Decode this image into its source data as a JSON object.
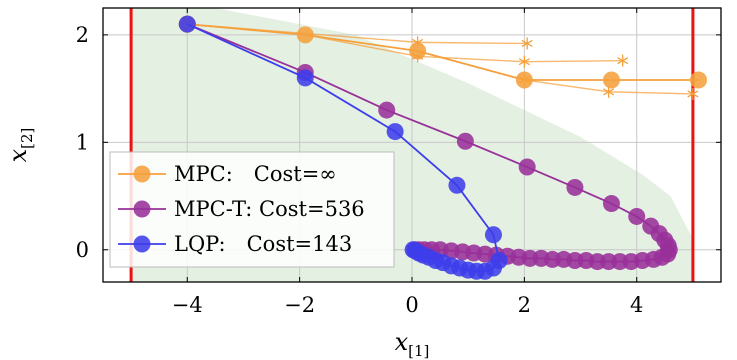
{
  "chart_data": {
    "type": "line",
    "xlabel": "x",
    "xlabel_sub": "[1]",
    "ylabel": "x",
    "ylabel_sub": "[2]",
    "xlim": [
      -5.5,
      5.5
    ],
    "ylim": [
      -0.3,
      2.25
    ],
    "xticks": [
      {
        "value": -4,
        "label": "−4"
      },
      {
        "value": -2,
        "label": "−2"
      },
      {
        "value": 0,
        "label": "0"
      },
      {
        "value": 2,
        "label": "2"
      },
      {
        "value": 4,
        "label": "4"
      }
    ],
    "yticks": [
      {
        "value": 0,
        "label": "0"
      },
      {
        "value": 1,
        "label": "1"
      },
      {
        "value": 2,
        "label": "2"
      }
    ],
    "grid": true,
    "constraint_lines_x": [
      -5,
      5
    ],
    "feasible_region_polygon": [
      [
        -5,
        2.25
      ],
      [
        -4,
        2.25
      ],
      [
        -3.5,
        2.25
      ],
      [
        -2.5,
        2.15
      ],
      [
        -1,
        2.0
      ],
      [
        1.0,
        1.55
      ],
      [
        3.0,
        1.05
      ],
      [
        4.1,
        0.7
      ],
      [
        4.6,
        0.5
      ],
      [
        5.0,
        0.1
      ],
      [
        5.0,
        -0.3
      ],
      [
        -5,
        -0.3
      ]
    ],
    "series": [
      {
        "name": "MPC",
        "color": "#F5A03C",
        "marker": "circle",
        "x": [
          -4.0,
          -1.9,
          0.1,
          2.0,
          3.55,
          5.1
        ],
        "y": [
          2.1,
          2.0,
          1.85,
          1.58,
          1.58,
          1.58
        ]
      },
      {
        "name": "MPC-T",
        "color": "#98309A",
        "marker": "circle",
        "x": [
          -4.0,
          -1.9,
          -0.45,
          0.95,
          2.05,
          2.9,
          3.55,
          4.0,
          4.25,
          4.4,
          4.5,
          4.56,
          4.58,
          4.55,
          4.45,
          4.3,
          4.1,
          3.9,
          3.7,
          3.5,
          3.3,
          3.1,
          2.9,
          2.7,
          2.5,
          2.3,
          2.1,
          1.9,
          1.7,
          1.5,
          1.3,
          1.1,
          0.9,
          0.7,
          0.5,
          0.35,
          0.22,
          0.12,
          0.05
        ],
        "y": [
          2.1,
          1.65,
          1.3,
          1.01,
          0.77,
          0.58,
          0.43,
          0.31,
          0.22,
          0.15,
          0.09,
          0.04,
          0.0,
          -0.04,
          -0.07,
          -0.09,
          -0.1,
          -0.11,
          -0.11,
          -0.11,
          -0.11,
          -0.1,
          -0.1,
          -0.09,
          -0.09,
          -0.08,
          -0.08,
          -0.07,
          -0.06,
          -0.05,
          -0.04,
          -0.03,
          -0.02,
          -0.01,
          0.0,
          0.0,
          0.0,
          0.0,
          0.0
        ]
      },
      {
        "name": "LQP",
        "color": "#3E3EEB",
        "marker": "circle",
        "x": [
          -4.0,
          -1.9,
          -0.3,
          0.8,
          1.45,
          1.55,
          1.45,
          1.3,
          1.15,
          1.0,
          0.85,
          0.7,
          0.55,
          0.42,
          0.3,
          0.2,
          0.12,
          0.06,
          0.02
        ],
        "y": [
          2.1,
          1.6,
          1.1,
          0.6,
          0.14,
          -0.1,
          -0.17,
          -0.2,
          -0.2,
          -0.19,
          -0.17,
          -0.15,
          -0.12,
          -0.1,
          -0.07,
          -0.05,
          -0.03,
          -0.01,
          0.0
        ]
      }
    ],
    "predictions": [
      {
        "x": [
          -4.0,
          0.1,
          2.05
        ],
        "y": [
          2.1,
          1.93,
          1.92
        ]
      },
      {
        "x": [
          -1.9,
          0.1,
          2.0,
          3.75
        ],
        "y": [
          2.0,
          1.8,
          1.75,
          1.76
        ]
      },
      {
        "x": [
          0.1,
          2.0,
          3.5,
          5.0
        ],
        "y": [
          1.85,
          1.58,
          1.47,
          1.45
        ]
      }
    ],
    "legend": {
      "placement": "bottom-left",
      "entries": [
        {
          "series": "MPC",
          "text": "MPC:  Cost=∞"
        },
        {
          "series": "MPC-T",
          "text": "MPC-T: Cost=536"
        },
        {
          "series": "LQP",
          "text": "LQP:  Cost=143"
        }
      ]
    },
    "colors": {
      "constraint": "#EE1111",
      "region_fill": "#E4F0E2",
      "grid": "#C8C8C8",
      "prediction": "#F5A03C"
    }
  }
}
